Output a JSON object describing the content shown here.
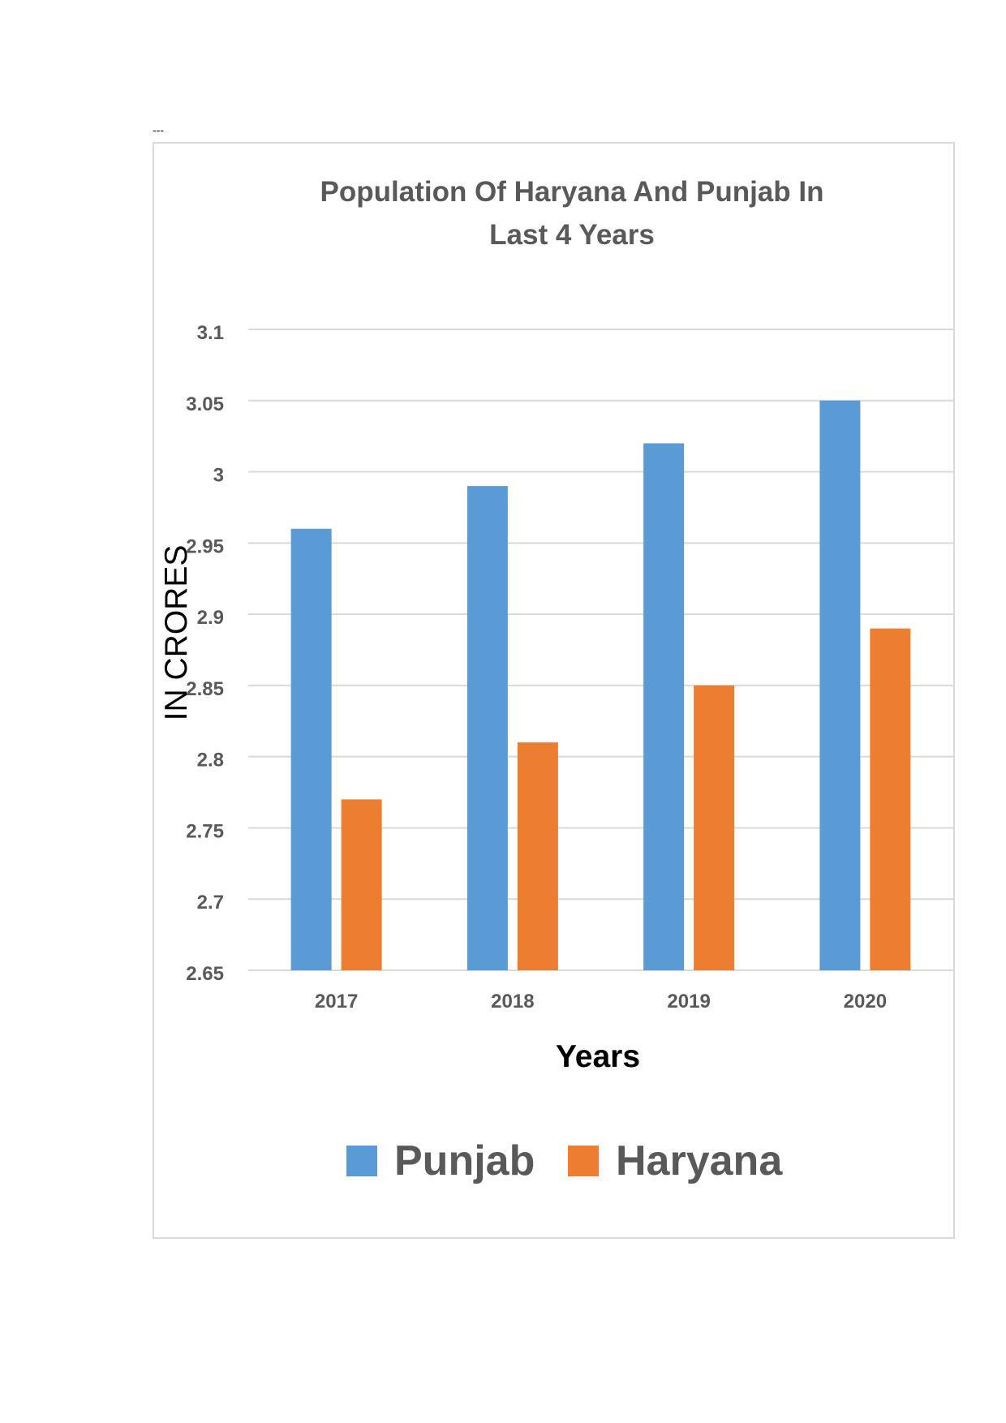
{
  "header": {
    "dashes": "---"
  },
  "chart_data": {
    "type": "bar",
    "title_line1": "Population Of Haryana And Punjab In",
    "title_line2": "Last 4 Years",
    "xlabel": "Years",
    "ylabel": "IN CRORES",
    "categories": [
      "2017",
      "2018",
      "2019",
      "2020"
    ],
    "series": [
      {
        "name": "Punjab",
        "values": [
          2.96,
          2.99,
          3.02,
          3.05
        ],
        "color": "#5b9bd5"
      },
      {
        "name": "Haryana",
        "values": [
          2.77,
          2.81,
          2.85,
          2.89
        ],
        "color": "#ed7d31"
      }
    ],
    "ylim": [
      2.65,
      3.1
    ],
    "yticks": [
      "2.65",
      "2.7",
      "2.75",
      "2.8",
      "2.85",
      "2.9",
      "2.95",
      "3",
      "3.05",
      "3.1"
    ],
    "grid": true,
    "legend_position": "bottom",
    "colors": {
      "title": "#595959",
      "tick": "#595959",
      "grid": "#d9d9d9",
      "axis_title": "#000000"
    }
  }
}
